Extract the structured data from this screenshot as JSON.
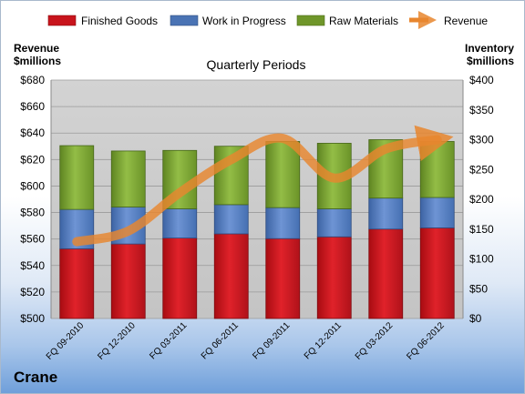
{
  "chart_data": {
    "type": "bar",
    "title": "Quarterly Periods",
    "company": "Crane",
    "categories": [
      "FQ 09-2010",
      "FQ 12-2010",
      "FQ 03-2011",
      "FQ 06-2011",
      "FQ 09-2011",
      "FQ 12-2011",
      "FQ 03-2012",
      "FQ 06-2012"
    ],
    "series": [
      {
        "name": "Finished Goods",
        "axis": "right",
        "stacked": true,
        "values": [
          117,
          125,
          135,
          142,
          134,
          137,
          150,
          152
        ]
      },
      {
        "name": "Work in Progress",
        "axis": "right",
        "stacked": true,
        "values": [
          66,
          62,
          49,
          49,
          52,
          47,
          52,
          51
        ]
      },
      {
        "name": "Raw Materials",
        "axis": "right",
        "stacked": true,
        "values": [
          107,
          94,
          98,
          98,
          111,
          110,
          98,
          94
        ]
      },
      {
        "name": "Revenue",
        "type": "line",
        "axis": "left",
        "values": [
          558,
          566,
          595,
          620,
          636,
          606,
          628,
          635
        ]
      }
    ],
    "left_axis": {
      "label_line1": "Revenue",
      "label_line2": "$millions",
      "ylim": [
        500,
        680
      ],
      "ticks": [
        "$500",
        "$520",
        "$540",
        "$560",
        "$580",
        "$600",
        "$620",
        "$640",
        "$660",
        "$680"
      ]
    },
    "right_axis": {
      "label_line1": "Inventory",
      "label_line2": "$millions",
      "ylim": [
        0,
        400
      ],
      "ticks": [
        "$0",
        "$50",
        "$100",
        "$150",
        "$200",
        "$250",
        "$300",
        "$350",
        "$400"
      ]
    },
    "legend_position": "top",
    "grid": true,
    "colors": {
      "Finished Goods": "#c8141c",
      "Work in Progress": "#4a73b4",
      "Raw Materials": "#6f962a",
      "Revenue": "#e8862e"
    }
  }
}
